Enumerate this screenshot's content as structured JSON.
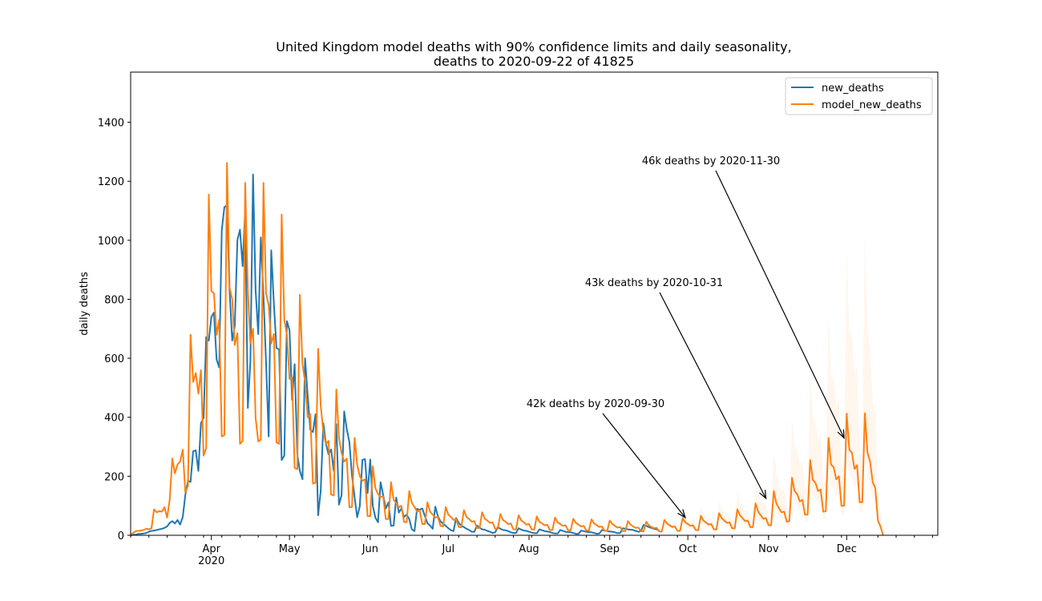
{
  "chart_data": {
    "type": "line",
    "title_line1": "United Kingdom model deaths with 90% confidence limits and daily seasonality,",
    "title_line2": "deaths to 2020-09-22 of 41825",
    "ylabel": "daily deaths",
    "ylim": [
      0,
      1570
    ],
    "yticks": [
      0,
      200,
      400,
      600,
      800,
      1000,
      1200,
      1400
    ],
    "x_start": "2020-03-01",
    "x_end": "2021-01-05",
    "x_ticks": [
      {
        "date": "2020-04-01",
        "label": "Apr",
        "sublabel": "2020"
      },
      {
        "date": "2020-05-01",
        "label": "May",
        "sublabel": ""
      },
      {
        "date": "2020-06-01",
        "label": "Jun",
        "sublabel": ""
      },
      {
        "date": "2020-07-01",
        "label": "Jul",
        "sublabel": ""
      },
      {
        "date": "2020-08-01",
        "label": "Aug",
        "sublabel": ""
      },
      {
        "date": "2020-09-01",
        "label": "Sep",
        "sublabel": ""
      },
      {
        "date": "2020-10-01",
        "label": "Oct",
        "sublabel": ""
      },
      {
        "date": "2020-11-01",
        "label": "Nov",
        "sublabel": ""
      },
      {
        "date": "2020-12-01",
        "label": "Dec",
        "sublabel": ""
      }
    ],
    "legend_position": "top-right",
    "series": [
      {
        "name": "new_deaths",
        "color": "#1f77b4",
        "start_date": "2020-03-01",
        "values": [
          0,
          2,
          2,
          5,
          5,
          6,
          8,
          12,
          15,
          16,
          18,
          20,
          22,
          25,
          30,
          42,
          48,
          40,
          52,
          36,
          62,
          136,
          185,
          181,
          285,
          288,
          218,
          380,
          398,
          672,
          660,
          740,
          755,
          596,
          569,
          1035,
          1112,
          1120,
          830,
          660,
          710,
          1001,
          1036,
          912,
          1104,
          432,
          590,
          1223,
          830,
          682,
          1010,
          812,
          588,
          335,
          966,
          785,
          635,
          630,
          255,
          270,
          726,
          696,
          459,
          580,
          275,
          218,
          190,
          600,
          472,
          358,
          350,
          410,
          68,
          150,
          380,
          312,
          274,
          291,
          218,
          377,
          104,
          135,
          420,
          360,
          316,
          203,
          129,
          61,
          99,
          256,
          258,
          143,
          257,
          100,
          60,
          44,
          180,
          136,
          91,
          111,
          32,
          33,
          128,
          77,
          91,
          62,
          70,
          55,
          20,
          14,
          90,
          86,
          91,
          65,
          41,
          33,
          22,
          97,
          65,
          47,
          40,
          32,
          24,
          17,
          14,
          58,
          42,
          32,
          28,
          22,
          18,
          12,
          12,
          33,
          26,
          20,
          19,
          15,
          12,
          8,
          10,
          28,
          22,
          18,
          17,
          14,
          10,
          8,
          8,
          24,
          19,
          16,
          15,
          12,
          9,
          7,
          7,
          20,
          17,
          14,
          13,
          11,
          8,
          6,
          6,
          18,
          15,
          12,
          11,
          10,
          8,
          5,
          5,
          16,
          14,
          12,
          11,
          10,
          8,
          5,
          6,
          18,
          16,
          14,
          13,
          12,
          10,
          7,
          8,
          24,
          22,
          20,
          19,
          18,
          15,
          12,
          14,
          35,
          32,
          28,
          25,
          22,
          20,
          16
        ]
      },
      {
        "name": "model_new_deaths",
        "color": "#ff7f0e",
        "start_date": "2020-03-01",
        "values": [
          2,
          8,
          14,
          15,
          16,
          18,
          22,
          20,
          24,
          88,
          78,
          82,
          80,
          95,
          60,
          120,
          260,
          210,
          240,
          250,
          290,
          145,
          168,
          680,
          520,
          550,
          480,
          560,
          270,
          295,
          1155,
          828,
          820,
          680,
          730,
          335,
          340,
          1262,
          840,
          800,
          645,
          685,
          310,
          320,
          1195,
          830,
          650,
          700,
          398,
          318,
          324,
          1195,
          820,
          780,
          650,
          682,
          315,
          310,
          1087,
          730,
          680,
          530,
          535,
          228,
          224,
          815,
          580,
          520,
          400,
          410,
          175,
          178,
          632,
          440,
          350,
          310,
          320,
          138,
          135,
          494,
          330,
          280,
          250,
          260,
          95,
          96,
          330,
          240,
          200,
          185,
          190,
          65,
          65,
          234,
          160,
          140,
          130,
          132,
          55,
          55,
          180,
          120,
          110,
          95,
          100,
          45,
          44,
          150,
          110,
          96,
          80,
          85,
          38,
          38,
          112,
          80,
          70,
          60,
          62,
          32,
          30,
          96,
          70,
          62,
          52,
          55,
          28,
          27,
          85,
          62,
          55,
          46,
          48,
          25,
          24,
          78,
          56,
          50,
          42,
          44,
          22,
          22,
          72,
          52,
          46,
          38,
          40,
          20,
          20,
          68,
          50,
          44,
          36,
          38,
          20,
          19,
          64,
          46,
          40,
          34,
          36,
          18,
          18,
          60,
          44,
          38,
          32,
          34,
          17,
          17,
          56,
          42,
          36,
          30,
          32,
          16,
          16,
          54,
          40,
          34,
          28,
          30,
          15,
          15,
          50,
          38,
          32,
          26,
          28,
          14,
          14,
          48,
          36,
          30,
          25,
          26,
          14,
          13,
          46,
          34,
          28,
          24,
          25,
          13,
          13,
          52,
          40,
          34,
          28,
          30,
          15,
          15,
          58,
          44,
          38,
          32,
          34,
          18,
          17,
          66,
          50,
          43,
          36,
          38,
          20,
          20,
          75,
          58,
          50,
          42,
          44,
          24,
          23,
          88,
          68,
          58,
          48,
          50,
          28,
          28,
          108,
          80,
          68,
          56,
          58,
          34,
          34,
          150,
          108,
          92,
          78,
          80,
          46,
          48,
          195,
          150,
          140,
          115,
          120,
          70,
          70,
          255,
          188,
          178,
          150,
          155,
          80,
          82,
          330,
          240,
          230,
          190,
          200,
          100,
          100,
          412,
          290,
          280,
          225,
          238,
          112,
          112,
          414,
          280,
          250,
          180,
          160,
          50,
          30,
          0
        ],
        "band_start_date": "2020-09-22",
        "band_factor_low": 0.7,
        "band_factor_high_start": 1.2,
        "band_factor_high_end": 2.6
      }
    ],
    "annotations": [
      {
        "text": "42k deaths by 2020-09-30",
        "arrow_date": "2020-09-30",
        "arrow_value": 60
      },
      {
        "text": "43k deaths by 2020-10-31",
        "arrow_date": "2020-10-31",
        "arrow_value": 125
      },
      {
        "text": "46k deaths by 2020-11-30",
        "arrow_date": "2020-11-30",
        "arrow_value": 330
      }
    ]
  }
}
